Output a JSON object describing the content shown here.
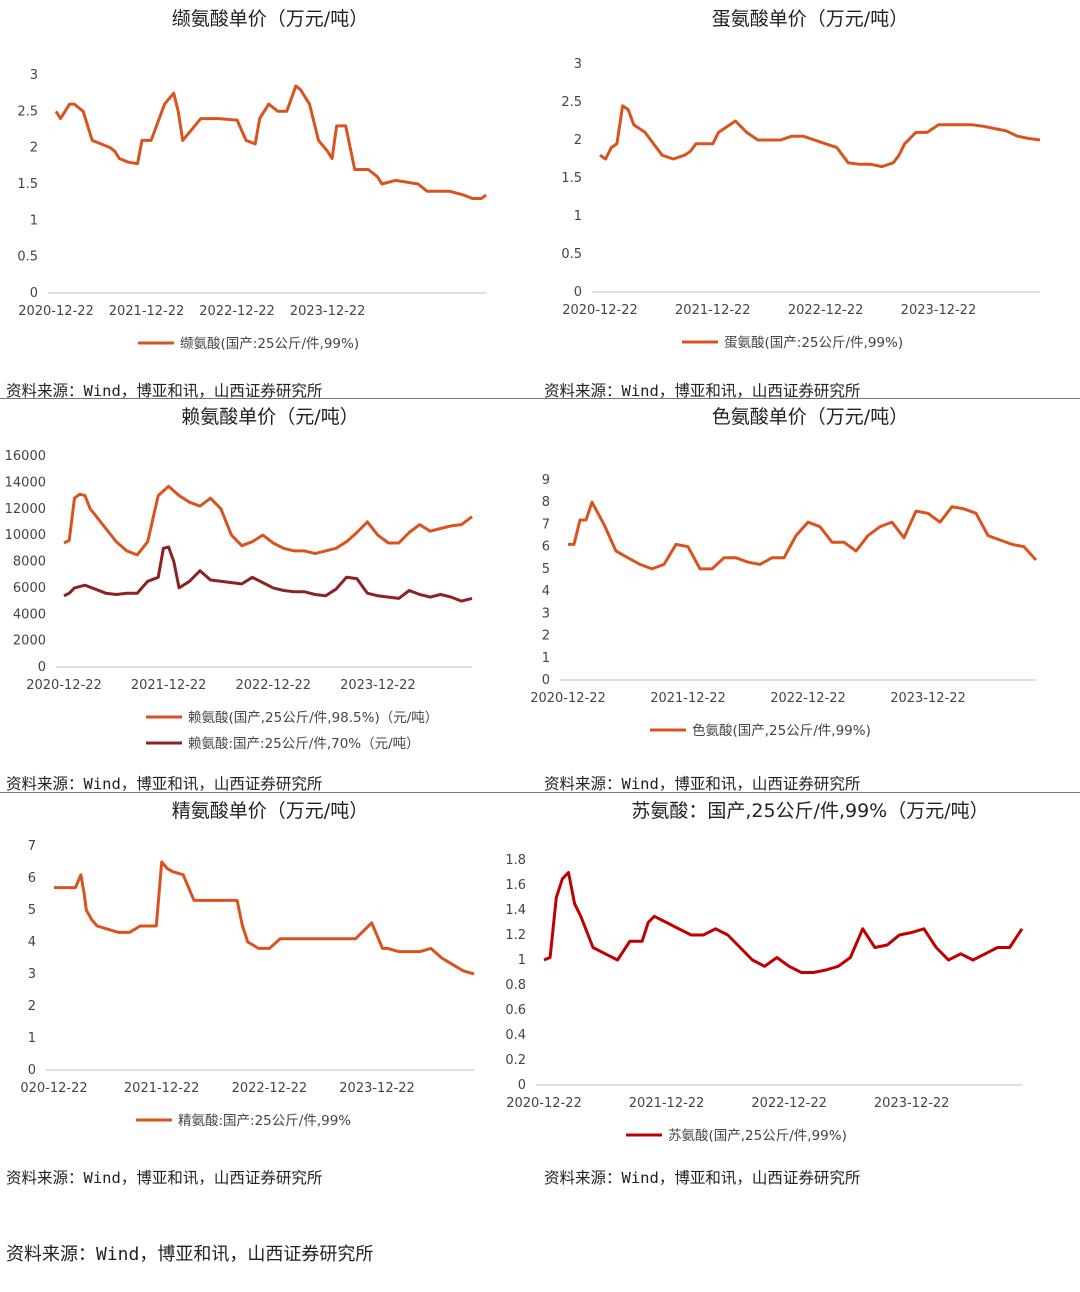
{
  "source_text": "资料来源：Wind，博亚和讯，山西证券研究所",
  "chart_data": [
    {
      "type": "line",
      "title": "缬氨酸单价（万元/吨）",
      "ylim": [
        0,
        3
      ],
      "y_ticks": [
        "0",
        "0.5",
        "1",
        "1.5",
        "2",
        "2.5",
        "3"
      ],
      "x_tick_labels": [
        "2020-12-22",
        "2021-12-22",
        "2022-12-22",
        "2023-12-22"
      ],
      "x_range": [
        0,
        4.75
      ],
      "grid": false,
      "legend_position": "bottom",
      "series": [
        {
          "name": "缬氨酸(国产:25公斤/件,99%)",
          "color": "#D9531E",
          "x": [
            0,
            0.05,
            0.1,
            0.15,
            0.2,
            0.3,
            0.4,
            0.5,
            0.6,
            0.65,
            0.7,
            0.8,
            0.9,
            0.95,
            1.0,
            1.05,
            1.2,
            1.3,
            1.35,
            1.4,
            1.5,
            1.6,
            1.7,
            1.8,
            2.0,
            2.1,
            2.2,
            2.25,
            2.35,
            2.45,
            2.55,
            2.65,
            2.7,
            2.8,
            2.9,
            3.0,
            3.05,
            3.1,
            3.2,
            3.3,
            3.45,
            3.55,
            3.6,
            3.75,
            4.0,
            4.1,
            4.35,
            4.5,
            4.6,
            4.7,
            4.75
          ],
          "y": [
            2.5,
            2.4,
            2.5,
            2.6,
            2.6,
            2.5,
            2.1,
            2.05,
            2.0,
            1.95,
            1.85,
            1.8,
            1.78,
            2.1,
            2.1,
            2.1,
            2.6,
            2.75,
            2.5,
            2.1,
            2.25,
            2.4,
            2.4,
            2.4,
            2.38,
            2.1,
            2.05,
            2.4,
            2.6,
            2.5,
            2.5,
            2.85,
            2.8,
            2.6,
            2.1,
            1.95,
            1.85,
            2.3,
            2.3,
            1.7,
            1.7,
            1.6,
            1.5,
            1.55,
            1.5,
            1.4,
            1.4,
            1.35,
            1.3,
            1.3,
            1.35
          ]
        }
      ]
    },
    {
      "type": "line",
      "title": "蛋氨酸单价（万元/吨）",
      "ylim": [
        0,
        3
      ],
      "y_ticks": [
        "0",
        "0.5",
        "1",
        "1.5",
        "2",
        "2.5",
        "3"
      ],
      "x_tick_labels": [
        "2020-12-22",
        "2021-12-22",
        "2022-12-22",
        "2023-12-22"
      ],
      "x_range": [
        0,
        3.9
      ],
      "grid": false,
      "legend_position": "bottom",
      "series": [
        {
          "name": "蛋氨酸(国产:25公斤/件,99%)",
          "color": "#D9531E",
          "x": [
            0,
            0.05,
            0.1,
            0.15,
            0.2,
            0.25,
            0.3,
            0.4,
            0.5,
            0.55,
            0.65,
            0.75,
            0.8,
            0.85,
            0.9,
            1.0,
            1.05,
            1.1,
            1.2,
            1.3,
            1.4,
            1.5,
            1.6,
            1.7,
            1.8,
            1.9,
            2.0,
            2.1,
            2.2,
            2.3,
            2.4,
            2.5,
            2.6,
            2.65,
            2.7,
            2.8,
            2.9,
            3.0,
            3.1,
            3.2,
            3.3,
            3.4,
            3.5,
            3.6,
            3.7,
            3.8,
            3.9
          ],
          "y": [
            1.8,
            1.75,
            1.9,
            1.95,
            2.45,
            2.4,
            2.2,
            2.1,
            1.9,
            1.8,
            1.75,
            1.8,
            1.85,
            1.95,
            1.95,
            1.95,
            2.1,
            2.15,
            2.25,
            2.1,
            2.0,
            2.0,
            2.0,
            2.05,
            2.05,
            2.0,
            1.95,
            1.9,
            1.7,
            1.68,
            1.68,
            1.65,
            1.7,
            1.8,
            1.95,
            2.1,
            2.1,
            2.2,
            2.2,
            2.2,
            2.2,
            2.18,
            2.15,
            2.12,
            2.05,
            2.02,
            2.0
          ]
        }
      ]
    },
    {
      "type": "line",
      "title": "赖氨酸单价（元/吨）",
      "ylim": [
        0,
        16000
      ],
      "y_ticks": [
        "0",
        "2000",
        "4000",
        "6000",
        "8000",
        "10000",
        "12000",
        "14000",
        "16000"
      ],
      "x_tick_labels": [
        "2020-12-22",
        "2021-12-22",
        "2022-12-22",
        "2023-12-22"
      ],
      "x_range": [
        0,
        3.9
      ],
      "grid": false,
      "legend_position": "bottom",
      "series": [
        {
          "name": "赖氨酸(国产,25公斤/件,98.5%)（元/吨）",
          "color": "#D9531E",
          "x": [
            0,
            0.05,
            0.1,
            0.15,
            0.2,
            0.25,
            0.3,
            0.4,
            0.5,
            0.6,
            0.7,
            0.8,
            0.9,
            1.0,
            1.1,
            1.2,
            1.3,
            1.4,
            1.5,
            1.6,
            1.7,
            1.8,
            1.9,
            2.0,
            2.1,
            2.2,
            2.3,
            2.4,
            2.5,
            2.6,
            2.7,
            2.8,
            2.9,
            3.0,
            3.1,
            3.2,
            3.3,
            3.4,
            3.5,
            3.6,
            3.7,
            3.8,
            3.9
          ],
          "y": [
            9400,
            9600,
            12800,
            13100,
            13000,
            12000,
            11500,
            10500,
            9500,
            8800,
            8500,
            9500,
            13000,
            13700,
            13000,
            12500,
            12200,
            12800,
            12000,
            10000,
            9200,
            9500,
            10000,
            9400,
            9000,
            8800,
            8800,
            8600,
            8800,
            9000,
            9500,
            10200,
            11000,
            10000,
            9400,
            9400,
            10200,
            10800,
            10300,
            10500,
            10700,
            10800,
            11400
          ]
        },
        {
          "name": "赖氨酸:国产:25公斤/件,70%（元/吨）",
          "color": "#8B2323",
          "x": [
            0,
            0.05,
            0.1,
            0.2,
            0.3,
            0.4,
            0.5,
            0.6,
            0.7,
            0.8,
            0.9,
            0.95,
            1.0,
            1.05,
            1.1,
            1.2,
            1.3,
            1.4,
            1.5,
            1.6,
            1.7,
            1.8,
            1.9,
            2.0,
            2.1,
            2.2,
            2.3,
            2.4,
            2.5,
            2.6,
            2.7,
            2.8,
            2.9,
            3.0,
            3.1,
            3.2,
            3.3,
            3.4,
            3.5,
            3.6,
            3.7,
            3.8,
            3.9
          ],
          "y": [
            5400,
            5600,
            6000,
            6200,
            5900,
            5600,
            5500,
            5600,
            5600,
            6500,
            6800,
            9000,
            9100,
            8000,
            6000,
            6500,
            7300,
            6600,
            6500,
            6400,
            6300,
            6800,
            6400,
            6000,
            5800,
            5700,
            5700,
            5500,
            5400,
            5900,
            6800,
            6700,
            5600,
            5400,
            5300,
            5200,
            5800,
            5500,
            5300,
            5500,
            5300,
            5000,
            5200
          ]
        }
      ]
    },
    {
      "type": "line",
      "title": "色氨酸单价（万元/吨）",
      "ylim": [
        0,
        9
      ],
      "y_ticks": [
        "0",
        "1",
        "2",
        "3",
        "4",
        "5",
        "6",
        "7",
        "8",
        "9"
      ],
      "x_tick_labels": [
        "2020-12-22",
        "2021-12-22",
        "2022-12-22",
        "2023-12-22"
      ],
      "x_range": [
        0,
        3.9
      ],
      "grid": false,
      "legend_position": "bottom",
      "series": [
        {
          "name": "色氨酸(国产,25公斤/件,99%)",
          "color": "#D9531E",
          "x": [
            0,
            0.05,
            0.1,
            0.15,
            0.2,
            0.3,
            0.4,
            0.5,
            0.6,
            0.7,
            0.8,
            0.9,
            1.0,
            1.1,
            1.2,
            1.3,
            1.4,
            1.5,
            1.6,
            1.7,
            1.8,
            1.9,
            2.0,
            2.1,
            2.2,
            2.3,
            2.4,
            2.5,
            2.6,
            2.7,
            2.8,
            2.9,
            3.0,
            3.1,
            3.2,
            3.3,
            3.4,
            3.5,
            3.6,
            3.7,
            3.8,
            3.9
          ],
          "y": [
            6.1,
            6.1,
            7.2,
            7.2,
            8.0,
            7.0,
            5.8,
            5.5,
            5.2,
            5.0,
            5.2,
            6.1,
            6.0,
            5.0,
            5.0,
            5.5,
            5.5,
            5.3,
            5.2,
            5.5,
            5.5,
            6.5,
            7.1,
            6.9,
            6.2,
            6.2,
            5.8,
            6.5,
            6.9,
            7.1,
            6.4,
            7.6,
            7.5,
            7.1,
            7.8,
            7.7,
            7.5,
            6.5,
            6.3,
            6.1,
            6.0,
            5.4
          ]
        }
      ]
    },
    {
      "type": "line",
      "title": "精氨酸单价（万元/吨）",
      "ylim": [
        0,
        7
      ],
      "y_ticks": [
        "0",
        "1",
        "2",
        "3",
        "4",
        "5",
        "6",
        "7"
      ],
      "x_tick_labels": [
        "020-12-22",
        "2021-12-22",
        "2022-12-22",
        "2023-12-22"
      ],
      "x_range": [
        0,
        3.9
      ],
      "grid": false,
      "legend_position": "bottom",
      "series": [
        {
          "name": "精氨酸:国产:25公斤/件,99%",
          "color": "#D9531E",
          "x": [
            0,
            0.1,
            0.2,
            0.25,
            0.28,
            0.3,
            0.35,
            0.4,
            0.5,
            0.6,
            0.7,
            0.8,
            0.95,
            1.0,
            1.05,
            1.1,
            1.2,
            1.3,
            1.4,
            1.5,
            1.6,
            1.7,
            1.75,
            1.8,
            1.9,
            2.0,
            2.1,
            2.2,
            2.5,
            2.8,
            2.95,
            3.05,
            3.1,
            3.2,
            3.3,
            3.4,
            3.5,
            3.6,
            3.7,
            3.8,
            3.9
          ],
          "y": [
            5.7,
            5.7,
            5.7,
            6.1,
            5.5,
            5.0,
            4.7,
            4.5,
            4.4,
            4.3,
            4.3,
            4.5,
            4.5,
            6.5,
            6.3,
            6.2,
            6.1,
            5.3,
            5.3,
            5.3,
            5.3,
            5.3,
            4.5,
            4.0,
            3.8,
            3.8,
            4.1,
            4.1,
            4.1,
            4.1,
            4.6,
            3.8,
            3.8,
            3.7,
            3.7,
            3.7,
            3.8,
            3.5,
            3.3,
            3.1,
            3.0
          ]
        }
      ]
    },
    {
      "type": "line",
      "title": "苏氨酸：国产,25公斤/件,99%（万元/吨）",
      "ylim": [
        0,
        1.8
      ],
      "y_ticks": [
        "0",
        "0.2",
        "0.4",
        "0.6",
        "0.8",
        "1",
        "1.2",
        "1.4",
        "1.6",
        "1.8"
      ],
      "x_tick_labels": [
        "2020-12-22",
        "2021-12-22",
        "2022-12-22",
        "2023-12-22"
      ],
      "x_range": [
        0,
        3.9
      ],
      "grid": false,
      "legend_position": "bottom",
      "series": [
        {
          "name": "苏氨酸(国产,25公斤/件,99%)",
          "color": "#C00000",
          "x": [
            0,
            0.05,
            0.1,
            0.15,
            0.2,
            0.25,
            0.3,
            0.4,
            0.5,
            0.6,
            0.7,
            0.8,
            0.85,
            0.9,
            1.0,
            1.1,
            1.2,
            1.3,
            1.4,
            1.5,
            1.6,
            1.7,
            1.8,
            1.9,
            2.0,
            2.1,
            2.2,
            2.3,
            2.4,
            2.5,
            2.6,
            2.7,
            2.8,
            2.9,
            3.0,
            3.1,
            3.2,
            3.3,
            3.4,
            3.5,
            3.6,
            3.7,
            3.8,
            3.9
          ],
          "y": [
            1.0,
            1.02,
            1.5,
            1.65,
            1.7,
            1.45,
            1.35,
            1.1,
            1.05,
            1.0,
            1.15,
            1.15,
            1.3,
            1.35,
            1.3,
            1.25,
            1.2,
            1.2,
            1.25,
            1.2,
            1.1,
            1.0,
            0.95,
            1.02,
            0.95,
            0.9,
            0.9,
            0.92,
            0.95,
            1.02,
            1.25,
            1.1,
            1.12,
            1.2,
            1.22,
            1.25,
            1.1,
            1.0,
            1.05,
            1.0,
            1.05,
            1.1,
            1.1,
            1.25
          ]
        }
      ]
    }
  ]
}
